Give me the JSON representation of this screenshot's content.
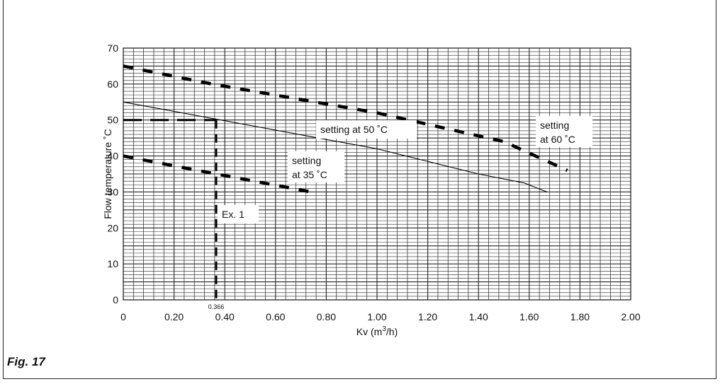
{
  "caption": "Fig. 17",
  "chart_data": {
    "type": "line",
    "xlabel": "Kv (m3/h)",
    "xlabel_parts": {
      "main": "Kv (m",
      "sup": "3",
      "tail": "/h)"
    },
    "ylabel": "Flow temperature ˚C",
    "xlim": [
      0,
      2.0
    ],
    "ylim": [
      0,
      70
    ],
    "x_ticks": [
      "0",
      "0.20",
      "0.40",
      "0.60",
      "0.80",
      "1.00",
      "1.20",
      "1.40",
      "1.60",
      "1.80",
      "2.00"
    ],
    "y_ticks": [
      "0",
      "10",
      "20",
      "30",
      "40",
      "50",
      "60",
      "70"
    ],
    "grid": true,
    "series": [
      {
        "name": "setting at 60 ˚C",
        "style": "dashed-bold",
        "x": [
          0,
          0.35,
          1.0,
          1.5,
          1.75
        ],
        "y": [
          65,
          60,
          52,
          44,
          36
        ]
      },
      {
        "name": "setting at 50 ˚C",
        "style": "solid-thin",
        "x": [
          0,
          1.0,
          1.4,
          1.58,
          1.67
        ],
        "y": [
          55,
          42,
          35,
          32.5,
          30
        ]
      },
      {
        "name": "setting at 35 ˚C",
        "style": "dashed-bold",
        "x": [
          0,
          0.366,
          0.74
        ],
        "y": [
          40,
          35,
          30
        ]
      }
    ],
    "annotations": [
      {
        "id": "label-60",
        "lines": [
          "setting",
          "at 60 ˚C"
        ]
      },
      {
        "id": "label-50",
        "lines": [
          "setting at 50 ˚C"
        ]
      },
      {
        "id": "label-35",
        "lines": [
          "setting",
          "at 35 ˚C"
        ]
      },
      {
        "id": "label-ex1",
        "lines": [
          "Ex. 1"
        ]
      }
    ],
    "example": {
      "x": 0.366,
      "y": 50,
      "x_label": "0.366"
    }
  }
}
